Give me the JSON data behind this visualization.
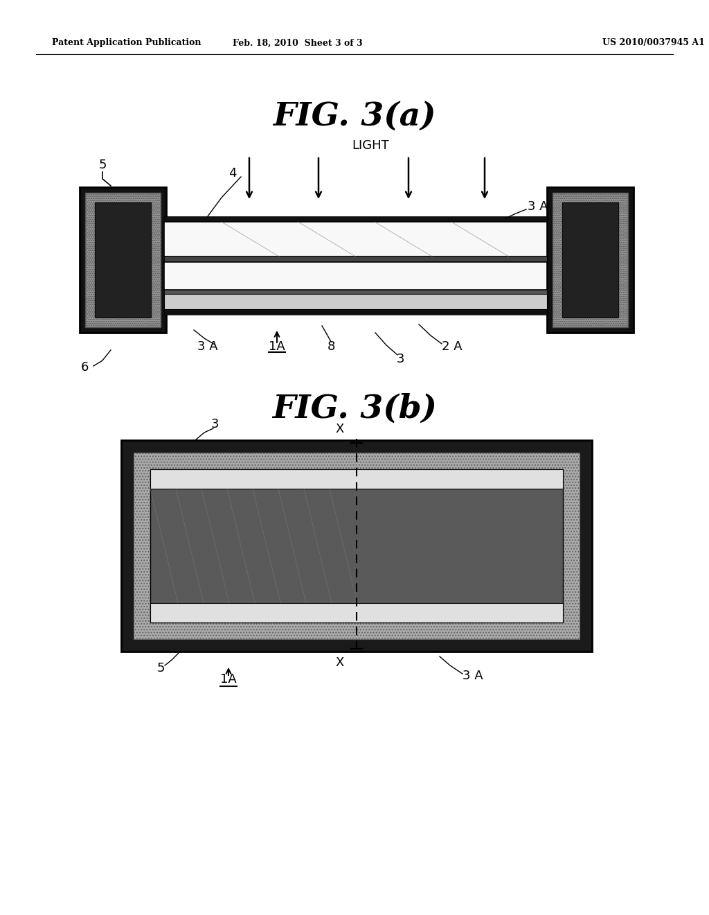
{
  "bg_color": "#ffffff",
  "header_left": "Patent Application Publication",
  "header_mid": "Feb. 18, 2010  Sheet 3 of 3",
  "header_right": "US 2010/0037945 A1",
  "fig_a_title": "FIG. 3(a)",
  "fig_b_title": "FIG. 3(b)",
  "light_label": "LIGHT",
  "colors": {
    "black": "#000000",
    "very_dark": "#111111",
    "dark_gray": "#333333",
    "medium_gray": "#666666",
    "hatch_gray": "#888888",
    "light_gray": "#bbbbbb",
    "very_light_gray": "#dddddd",
    "white": "#ffffff",
    "near_white": "#f5f5f5"
  }
}
